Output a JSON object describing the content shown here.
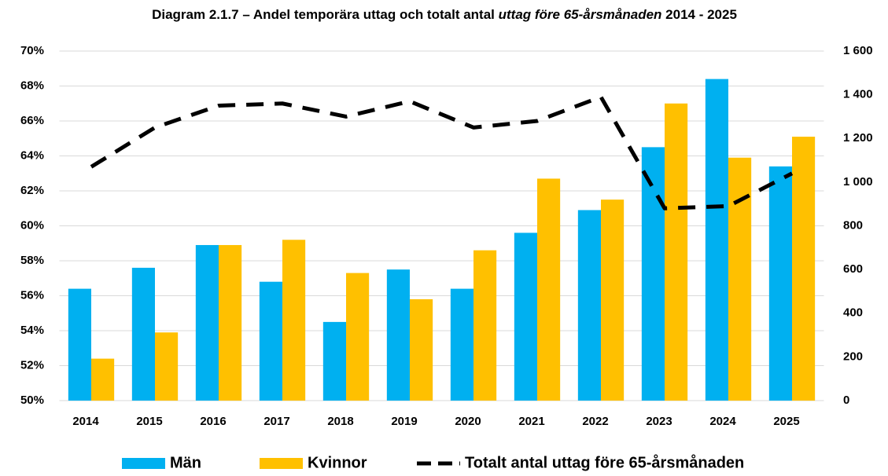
{
  "chart_data": {
    "type": "bar",
    "title": [
      "Diagram 2.1.7 – Andel temporära uttag och totalt antal ",
      "uttag före 65-årsmånaden",
      " 2014 - 2025"
    ],
    "categories": [
      "2014",
      "2015",
      "2016",
      "2017",
      "2018",
      "2019",
      "2020",
      "2021",
      "2022",
      "2023",
      "2024",
      "2025"
    ],
    "series": [
      {
        "name": "Män",
        "color": "#00b0f0",
        "values": [
          56.4,
          57.6,
          58.9,
          56.8,
          54.5,
          57.5,
          56.4,
          59.6,
          60.9,
          64.5,
          68.4,
          63.4
        ]
      },
      {
        "name": "Kvinnor",
        "color": "#ffc000",
        "values": [
          52.4,
          53.9,
          58.9,
          59.2,
          57.3,
          55.8,
          58.6,
          62.7,
          61.5,
          67.0,
          63.9,
          65.1
        ]
      },
      {
        "name": "Totalt antal uttag före 65-årsmånaden",
        "color": "#000000",
        "type": "line",
        "dashed": true,
        "axis": "y2",
        "values": [
          1070,
          1250,
          1350,
          1360,
          1300,
          1370,
          1250,
          1280,
          1390,
          880,
          890,
          1040
        ]
      }
    ],
    "ylim": [
      50,
      70
    ],
    "yticks": [
      {
        "value": 50,
        "label": "50%"
      },
      {
        "value": 52,
        "label": "52%"
      },
      {
        "value": 54,
        "label": "54%"
      },
      {
        "value": 56,
        "label": "56%"
      },
      {
        "value": 58,
        "label": "58%"
      },
      {
        "value": 60,
        "label": "60%"
      },
      {
        "value": 62,
        "label": "62%"
      },
      {
        "value": 64,
        "label": "64%"
      },
      {
        "value": 66,
        "label": "66%"
      },
      {
        "value": 68,
        "label": "68%"
      },
      {
        "value": 70,
        "label": "70%"
      }
    ],
    "y2lim": [
      0,
      1600
    ],
    "y2ticks": [
      0,
      200,
      400,
      600,
      800,
      {
        "value": 1000,
        "label": "1 000"
      },
      {
        "value": 1200,
        "label": "1 200"
      },
      {
        "value": 1400,
        "label": "1 400"
      },
      {
        "value": 1600,
        "label": "1 600"
      }
    ],
    "grid": true,
    "legend": "bottom"
  }
}
